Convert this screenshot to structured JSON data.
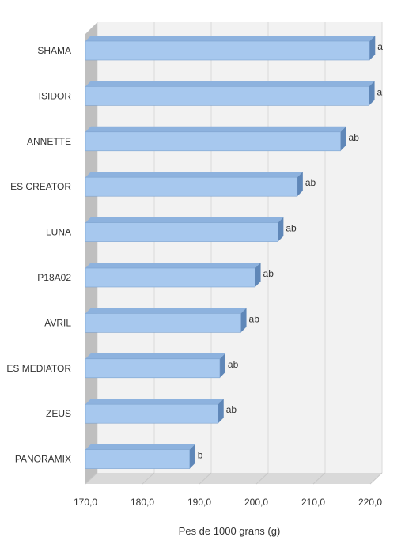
{
  "chart_data": {
    "type": "bar",
    "orientation": "horizontal",
    "categories": [
      "SHAMA",
      "ISIDOR",
      "ANNETTE",
      "ES CREATOR",
      "LUNA",
      "P18A02",
      "AVRIL",
      "ES MEDIATOR",
      "ZEUS",
      "PANORAMIX"
    ],
    "values": [
      219.9,
      219.8,
      214.8,
      207.2,
      203.8,
      199.8,
      197.3,
      193.6,
      193.3,
      188.3
    ],
    "data_labels": [
      "a",
      "a",
      "ab",
      "ab",
      "ab",
      "ab",
      "ab",
      "ab",
      "ab",
      "b"
    ],
    "xlim": [
      170,
      220
    ],
    "xticks": [
      "170,0",
      "180,0",
      "190,0",
      "200,0",
      "210,0",
      "220,0"
    ],
    "xlabel": "Pes de 1000 grans (g)",
    "ylabel": "",
    "title": "",
    "grid": true,
    "legend": "none",
    "style": "3d",
    "colors": {
      "bar_front": "#a7c8ee",
      "bar_top": "#8db2de",
      "bar_side": "#5f87b8",
      "wall": "#f2f2f2",
      "floor": "#d9d9d9",
      "left_wall": "#bfbfbf",
      "grid": "#d9d9d9"
    }
  }
}
